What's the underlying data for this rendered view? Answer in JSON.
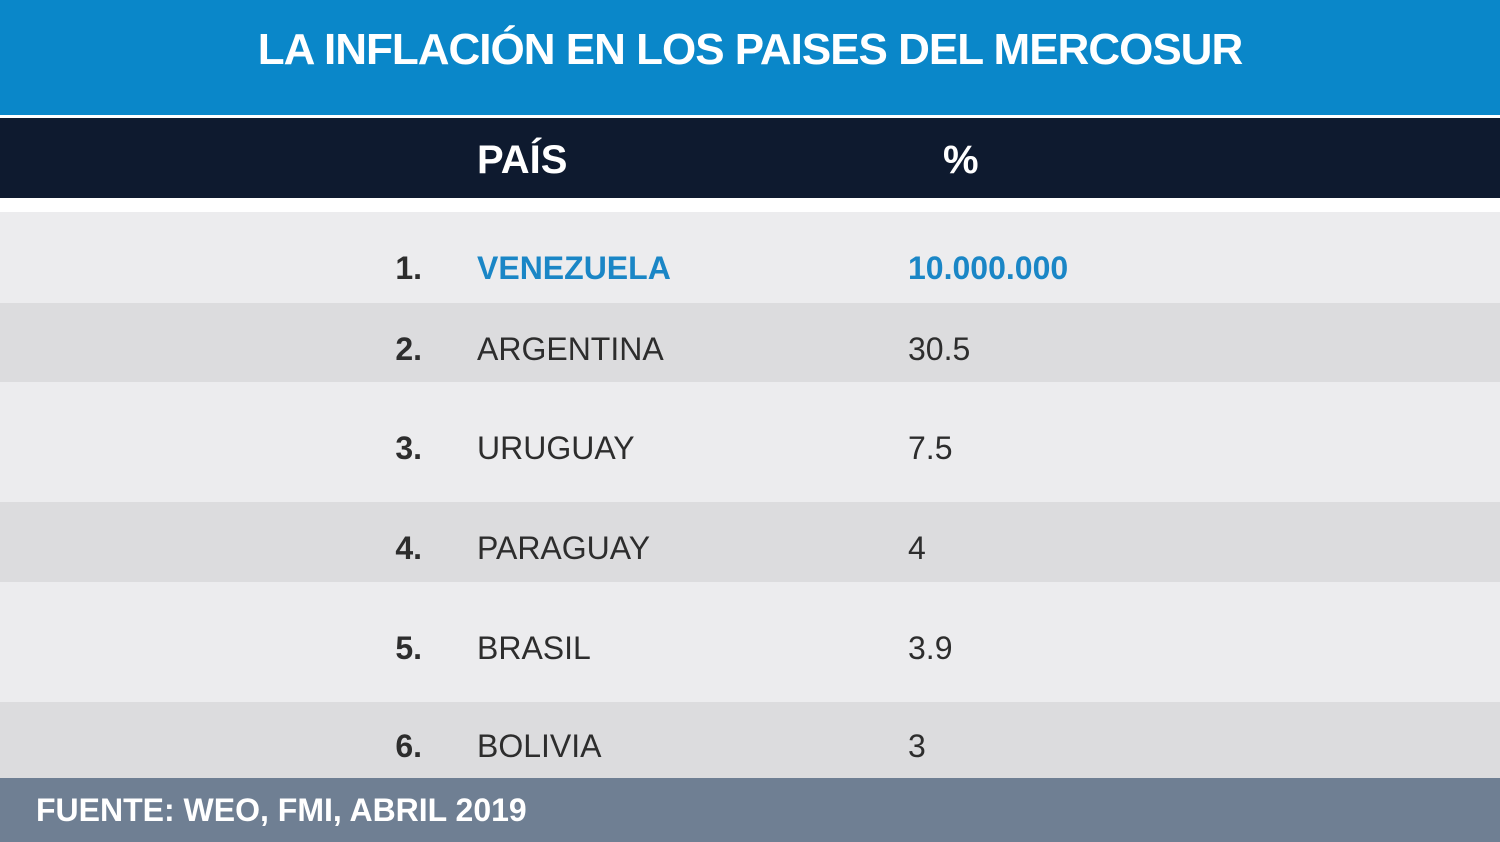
{
  "header": {
    "title": "LA INFLACIÓN EN LOS PAISES DEL MERCOSUR"
  },
  "table": {
    "columns": [
      "PAÍS",
      "%"
    ],
    "rows": [
      [
        "1.",
        "VENEZUELA",
        "10.000.000"
      ],
      [
        "2.",
        "ARGENTINA",
        "30.5"
      ],
      [
        "3.",
        "URUGUAY",
        "7.5"
      ],
      [
        "4.",
        "PARAGUAY",
        "4"
      ],
      [
        "5.",
        "BRASIL",
        "3.9"
      ],
      [
        "6.",
        "BOLIVIA",
        "3"
      ]
    ]
  },
  "footer": {
    "source": "FUENTE: WEO, FMI, ABRIL 2019"
  }
}
